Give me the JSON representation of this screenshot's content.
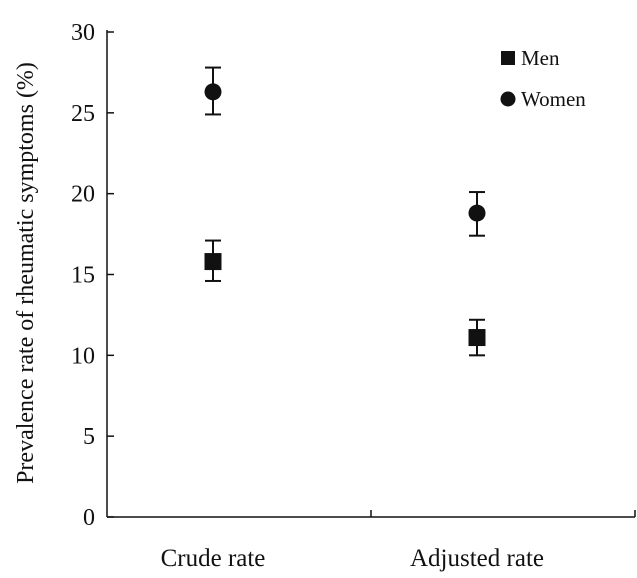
{
  "chart_data": {
    "type": "scatter",
    "title": "",
    "xlabel": "",
    "ylabel": "Prevalence rate of rheumatic symptoms (%)",
    "categories": [
      "Crude rate",
      "Adjusted rate"
    ],
    "ylim": [
      0,
      30
    ],
    "yticks": [
      "0",
      "5",
      "10",
      "15",
      "20",
      "25",
      "30"
    ],
    "grid": false,
    "legend_position": "top-right",
    "error_bars": true,
    "series": [
      {
        "name": "Men",
        "marker": "square",
        "values": [
          15.8,
          11.1
        ],
        "error_low": [
          14.6,
          10.0
        ],
        "error_high": [
          17.1,
          12.2
        ]
      },
      {
        "name": "Women",
        "marker": "circle",
        "values": [
          26.3,
          18.8
        ],
        "error_low": [
          24.9,
          17.4
        ],
        "error_high": [
          27.8,
          20.1
        ]
      }
    ],
    "colors": {
      "marker": "#111111",
      "axis": "#111111",
      "background": "#ffffff"
    }
  }
}
